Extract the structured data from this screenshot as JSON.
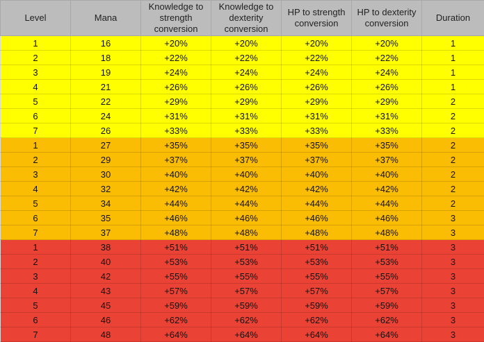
{
  "table": {
    "headers": [
      "Level",
      "Mana",
      "Knowledge to strength conversion",
      "Knowledge to dexterity conversion",
      "HP to strength conversion",
      "HP to dexterity conversion",
      "Duration"
    ],
    "tier_colors": [
      "#ffff00",
      "#fbbc04",
      "#ea4335"
    ],
    "tiers": [
      {
        "rows": [
          [
            "1",
            "16",
            "+20%",
            "+20%",
            "+20%",
            "+20%",
            "1"
          ],
          [
            "2",
            "18",
            "+22%",
            "+22%",
            "+22%",
            "+22%",
            "1"
          ],
          [
            "3",
            "19",
            "+24%",
            "+24%",
            "+24%",
            "+24%",
            "1"
          ],
          [
            "4",
            "21",
            "+26%",
            "+26%",
            "+26%",
            "+26%",
            "1"
          ],
          [
            "5",
            "22",
            "+29%",
            "+29%",
            "+29%",
            "+29%",
            "2"
          ],
          [
            "6",
            "24",
            "+31%",
            "+31%",
            "+31%",
            "+31%",
            "2"
          ],
          [
            "7",
            "26",
            "+33%",
            "+33%",
            "+33%",
            "+33%",
            "2"
          ]
        ]
      },
      {
        "rows": [
          [
            "1",
            "27",
            "+35%",
            "+35%",
            "+35%",
            "+35%",
            "2"
          ],
          [
            "2",
            "29",
            "+37%",
            "+37%",
            "+37%",
            "+37%",
            "2"
          ],
          [
            "3",
            "30",
            "+40%",
            "+40%",
            "+40%",
            "+40%",
            "2"
          ],
          [
            "4",
            "32",
            "+42%",
            "+42%",
            "+42%",
            "+42%",
            "2"
          ],
          [
            "5",
            "34",
            "+44%",
            "+44%",
            "+44%",
            "+44%",
            "2"
          ],
          [
            "6",
            "35",
            "+46%",
            "+46%",
            "+46%",
            "+46%",
            "3"
          ],
          [
            "7",
            "37",
            "+48%",
            "+48%",
            "+48%",
            "+48%",
            "3"
          ]
        ]
      },
      {
        "rows": [
          [
            "1",
            "38",
            "+51%",
            "+51%",
            "+51%",
            "+51%",
            "3"
          ],
          [
            "2",
            "40",
            "+53%",
            "+53%",
            "+53%",
            "+53%",
            "3"
          ],
          [
            "3",
            "42",
            "+55%",
            "+55%",
            "+55%",
            "+55%",
            "3"
          ],
          [
            "4",
            "43",
            "+57%",
            "+57%",
            "+57%",
            "+57%",
            "3"
          ],
          [
            "5",
            "45",
            "+59%",
            "+59%",
            "+59%",
            "+59%",
            "3"
          ],
          [
            "6",
            "46",
            "+62%",
            "+62%",
            "+62%",
            "+62%",
            "3"
          ],
          [
            "7",
            "48",
            "+64%",
            "+64%",
            "+64%",
            "+64%",
            "3"
          ]
        ]
      }
    ]
  }
}
